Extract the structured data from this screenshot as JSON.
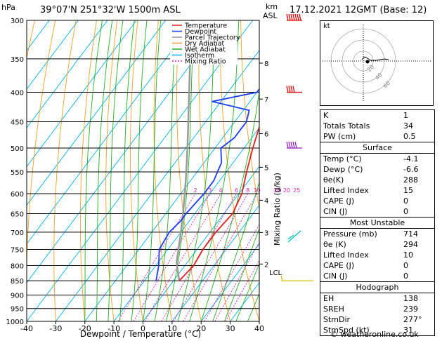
{
  "header": {
    "hpa_label": "hPa",
    "location": "39°07'N  251°32'W  1500m  ASL",
    "km_label": "km",
    "asl_label": "ASL",
    "datetime": "17.12.2021  12GMT  (Base: 12)"
  },
  "colors": {
    "temperature": "#e02020",
    "dewpoint": "#1a3cff",
    "parcel": "#999999",
    "dry_adiabat": "#f0a020",
    "wet_adiabat": "#22b022",
    "isotherm": "#00b0ff",
    "mixing_ratio": "#e020c0",
    "wind_red": "#e00000",
    "wind_purple": "#9020c0",
    "wind_cyan": "#00c0c0",
    "wind_yellow": "#e0c000"
  },
  "legend": [
    "Temperature",
    "Dewpoint",
    "Parcel Trajectory",
    "Dry Adiabat",
    "Wet Adiabat",
    "Isotherm",
    "Mixing Ratio"
  ],
  "chart_data": {
    "type": "line",
    "xlabel": "Dewpoint / Temperature (°C)",
    "ylabel": "hPa",
    "xlim": [
      -40,
      40
    ],
    "ylim": [
      1000,
      300
    ],
    "x_ticks": [
      "-40",
      "-30",
      "-20",
      "-10",
      "0",
      "10",
      "20",
      "30",
      "40"
    ],
    "pressure_levels": [
      "300",
      "350",
      "400",
      "450",
      "500",
      "550",
      "600",
      "650",
      "700",
      "750",
      "800",
      "850",
      "900",
      "950",
      "1000"
    ],
    "km_ticks": [
      "8",
      "7",
      "6",
      "5",
      "4",
      "3",
      "2"
    ],
    "lcl_label": "LCL",
    "mixing_ratio_axis_label": "Mixing Ratio (g/kg)",
    "mixing_ratio_labels": [
      "2",
      "3",
      "4",
      "6",
      "8",
      "10",
      "16",
      "20",
      "25"
    ],
    "series": [
      {
        "name": "Temperature",
        "points": [
          [
            850,
            2
          ],
          [
            800,
            3
          ],
          [
            750,
            2
          ],
          [
            700,
            2
          ],
          [
            650,
            3
          ],
          [
            600,
            1
          ],
          [
            550,
            -3
          ],
          [
            500,
            -7
          ],
          [
            450,
            -11
          ],
          [
            400,
            -13
          ],
          [
            350,
            -19
          ],
          [
            300,
            -22
          ]
        ]
      },
      {
        "name": "Dewpoint",
        "points": [
          [
            850,
            -6
          ],
          [
            800,
            -9
          ],
          [
            750,
            -13
          ],
          [
            700,
            -14
          ],
          [
            670,
            -13
          ],
          [
            650,
            -13
          ],
          [
            600,
            -12
          ],
          [
            570,
            -12
          ],
          [
            530,
            -14
          ],
          [
            500,
            -18
          ],
          [
            480,
            -16
          ],
          [
            460,
            -16
          ],
          [
            450,
            -16
          ],
          [
            430,
            -18
          ],
          [
            415,
            -33
          ],
          [
            400,
            -20
          ],
          [
            370,
            -20
          ],
          [
            350,
            -11
          ],
          [
            340,
            -12
          ],
          [
            310,
            -22
          ],
          [
            300,
            -20
          ]
        ]
      }
    ]
  },
  "hodograph": {
    "label": "kt",
    "rings": [
      "20",
      "40",
      "60"
    ]
  },
  "indices": [
    {
      "label": "K",
      "value": "1"
    },
    {
      "label": "Totals Totals",
      "value": "34"
    },
    {
      "label": "PW (cm)",
      "value": "0.5"
    }
  ],
  "surface": {
    "title": "Surface",
    "rows": [
      {
        "label": "Temp (°C)",
        "value": "-4.1"
      },
      {
        "label": "Dewp (°C)",
        "value": "-6.6"
      },
      {
        "label": "θe(K)",
        "value": "288"
      },
      {
        "label": "Lifted Index",
        "value": "15"
      },
      {
        "label": "CAPE (J)",
        "value": "0"
      },
      {
        "label": "CIN (J)",
        "value": "0"
      }
    ]
  },
  "most_unstable": {
    "title": "Most Unstable",
    "rows": [
      {
        "label": "Pressure (mb)",
        "value": "714"
      },
      {
        "label": "θe (K)",
        "value": "294"
      },
      {
        "label": "Lifted Index",
        "value": "10"
      },
      {
        "label": "CAPE (J)",
        "value": "0"
      },
      {
        "label": "CIN (J)",
        "value": "0"
      }
    ]
  },
  "hodograph_table": {
    "title": "Hodograph",
    "rows": [
      {
        "label": "EH",
        "value": "138"
      },
      {
        "label": "SREH",
        "value": "239"
      },
      {
        "label": "StmDir",
        "value": "277°"
      },
      {
        "label": "StmSpd (kt)",
        "value": "31"
      }
    ]
  },
  "footer": "© weatheronline.co.uk"
}
